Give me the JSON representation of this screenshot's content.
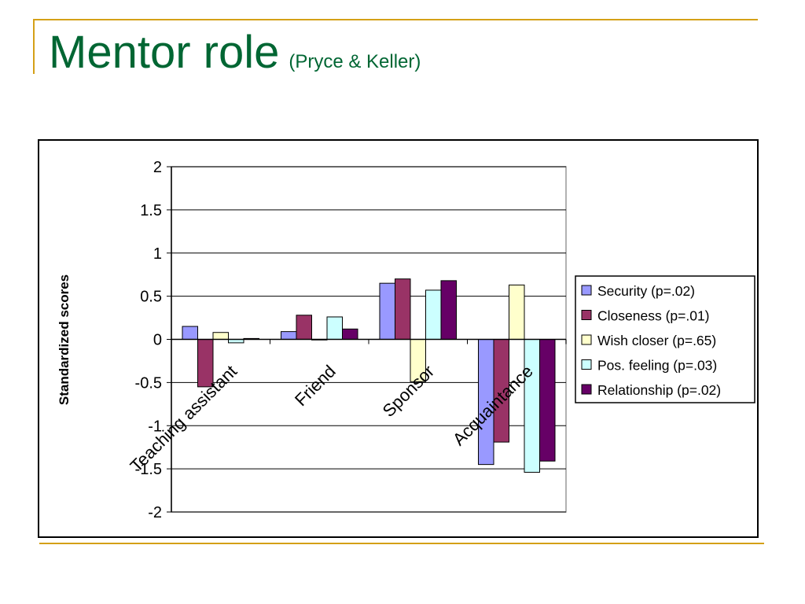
{
  "slide": {
    "title": "Mentor role",
    "subtitle": "(Pryce & Keller)"
  },
  "chart_data": {
    "type": "bar",
    "ylabel": "Standardized scores",
    "xlabel": "",
    "ylim": [
      -2,
      2
    ],
    "yticks": [
      2,
      1.5,
      1,
      0.5,
      0,
      -0.5,
      -1,
      -1.5,
      -2
    ],
    "grid": true,
    "legend_position": "right",
    "categories": [
      "Teaching assistant",
      "Friend",
      "Sponsor",
      "Acquaintance"
    ],
    "series": [
      {
        "name": "Security (p=.02)",
        "color": "#9999ff",
        "values": [
          0.15,
          0.09,
          0.65,
          -1.45
        ]
      },
      {
        "name": "Closeness (p=.01)",
        "color": "#993366",
        "values": [
          -0.55,
          0.28,
          0.7,
          -1.19
        ]
      },
      {
        "name": "Wish closer (p=.65)",
        "color": "#ffffcc",
        "values": [
          0.08,
          0.0,
          -0.49,
          0.63
        ]
      },
      {
        "name": "Pos. feeling (p=.03)",
        "color": "#ccffff",
        "values": [
          -0.04,
          0.26,
          0.57,
          -1.54
        ]
      },
      {
        "name": "Relationship (p=.02)",
        "color": "#660066",
        "values": [
          0.01,
          0.12,
          0.68,
          -1.41
        ]
      }
    ]
  }
}
